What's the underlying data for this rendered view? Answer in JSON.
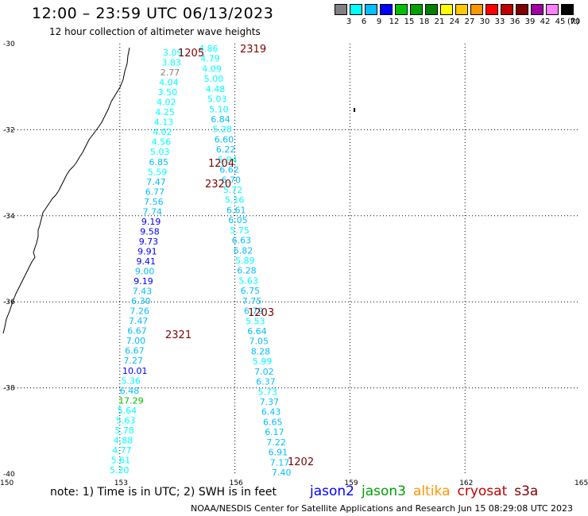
{
  "header": {
    "title": "12:00 – 23:59 UTC 06/13/2023",
    "subtitle": "12 hour collection of altimeter wave heights"
  },
  "colorbar": {
    "labels": [
      "3",
      "6",
      "9",
      "12",
      "15",
      "18",
      "21",
      "24",
      "27",
      "30",
      "33",
      "36",
      "39",
      "42",
      "45",
      "70"
    ],
    "unit": "(ft)",
    "colors": [
      "#808080",
      "#00ffff",
      "#00bfff",
      "#0000ff",
      "#00c000",
      "#00a000",
      "#008000",
      "#ffff00",
      "#ffc800",
      "#ff9600",
      "#ff0000",
      "#c00000",
      "#800000",
      "#a000a0",
      "#ff80ff",
      "#000000"
    ]
  },
  "note": "note: 1) Time is in UTC; 2) SWH is in feet",
  "credit": "NOAA/NESDIS Center for Satellite Applications and Research    Jun 15 08:29:08 UTC 2023",
  "missions": [
    {
      "name": "jason2",
      "color": "#0000ff"
    },
    {
      "name": "jason3",
      "color": "#00a000"
    },
    {
      "name": "altika",
      "color": "#ff9600"
    },
    {
      "name": "cryosat",
      "color": "#c00000"
    },
    {
      "name": "s3a",
      "color": "#800000"
    }
  ],
  "map": {
    "lon_range": [
      150,
      165
    ],
    "lat_range": [
      -40,
      -30
    ],
    "lon_labels": [
      "150",
      "153",
      "156",
      "159",
      "162",
      "165"
    ],
    "lat_labels": [
      "-30",
      "-32",
      "-34",
      "-36",
      "-38",
      "-40"
    ]
  },
  "pass_labels": [
    "1205",
    "2319",
    "1204",
    "2320",
    "1203",
    "2321",
    "1202"
  ],
  "tracks": [
    {
      "label_index": 0,
      "values": [
        {
          "v": "3.09",
          "c": "#00ffff"
        },
        {
          "v": "3.83",
          "c": "#00ffff"
        },
        {
          "v": "2.77",
          "c": "#808080"
        },
        {
          "v": "4.04",
          "c": "#00ffff"
        },
        {
          "v": "3.50",
          "c": "#00ffff"
        },
        {
          "v": "4.02",
          "c": "#00ffff"
        },
        {
          "v": "4.25",
          "c": "#00ffff"
        },
        {
          "v": "4.13",
          "c": "#00ffff"
        },
        {
          "v": "4.02",
          "c": "#00ffff"
        },
        {
          "v": "4.56",
          "c": "#00ffff"
        },
        {
          "v": "5.03",
          "c": "#00ffff"
        },
        {
          "v": "6.85",
          "c": "#00bfff"
        },
        {
          "v": "5.59",
          "c": "#00ffff"
        },
        {
          "v": "7.47",
          "c": "#00bfff"
        },
        {
          "v": "6.77",
          "c": "#00bfff"
        },
        {
          "v": "7.56",
          "c": "#00bfff"
        },
        {
          "v": "7.74",
          "c": "#00bfff"
        },
        {
          "v": "9.19",
          "c": "#0000ff"
        },
        {
          "v": "9.58",
          "c": "#0000ff"
        },
        {
          "v": "9.73",
          "c": "#0000ff"
        },
        {
          "v": "9.91",
          "c": "#0000ff"
        },
        {
          "v": "9.41",
          "c": "#0000ff"
        },
        {
          "v": "9.00",
          "c": "#00bfff"
        },
        {
          "v": "9.19",
          "c": "#0000ff"
        },
        {
          "v": "7.43",
          "c": "#00bfff"
        },
        {
          "v": "6.30",
          "c": "#00bfff"
        },
        {
          "v": "7.26",
          "c": "#00bfff"
        },
        {
          "v": "7.47",
          "c": "#00bfff"
        },
        {
          "v": "6.67",
          "c": "#00bfff"
        },
        {
          "v": "7.00",
          "c": "#00bfff"
        },
        {
          "v": "6.67",
          "c": "#00bfff"
        },
        {
          "v": "7.27",
          "c": "#00bfff"
        },
        {
          "v": "10.01",
          "c": "#0000ff"
        },
        {
          "v": "5.36",
          "c": "#00ffff"
        },
        {
          "v": "6.48",
          "c": "#00bfff"
        },
        {
          "v": "17.29",
          "c": "#00c000"
        },
        {
          "v": "5.64",
          "c": "#00ffff"
        },
        {
          "v": "5.63",
          "c": "#00ffff"
        },
        {
          "v": "5.78",
          "c": "#00ffff"
        },
        {
          "v": "4.88",
          "c": "#00ffff"
        },
        {
          "v": "4.77",
          "c": "#00ffff"
        },
        {
          "v": "5.61",
          "c": "#00ffff"
        },
        {
          "v": "5.20",
          "c": "#00ffff"
        }
      ]
    },
    {
      "label_index": 1,
      "values": [
        {
          "v": "4.86",
          "c": "#00ffff"
        },
        {
          "v": "4.79",
          "c": "#00ffff"
        },
        {
          "v": "4.09",
          "c": "#00ffff"
        },
        {
          "v": "5.00",
          "c": "#00ffff"
        },
        {
          "v": "4.48",
          "c": "#00ffff"
        },
        {
          "v": "5.03",
          "c": "#00ffff"
        },
        {
          "v": "5.10",
          "c": "#00ffff"
        },
        {
          "v": "6.84",
          "c": "#00bfff"
        },
        {
          "v": "5.28",
          "c": "#00ffff"
        },
        {
          "v": "6.60",
          "c": "#00bfff"
        },
        {
          "v": "6.22",
          "c": "#00bfff"
        },
        {
          "v": "5.94",
          "c": "#00ffff"
        },
        {
          "v": "6.62",
          "c": "#00bfff"
        },
        {
          "v": "6.70",
          "c": "#00bfff"
        },
        {
          "v": "5.72",
          "c": "#00ffff"
        },
        {
          "v": "5.16",
          "c": "#00ffff"
        },
        {
          "v": "6.61",
          "c": "#00bfff"
        },
        {
          "v": "6.05",
          "c": "#00bfff"
        },
        {
          "v": "5.75",
          "c": "#00ffff"
        },
        {
          "v": "6.63",
          "c": "#00bfff"
        },
        {
          "v": "6.82",
          "c": "#00bfff"
        },
        {
          "v": "5.89",
          "c": "#00ffff"
        },
        {
          "v": "6.28",
          "c": "#00bfff"
        },
        {
          "v": "5.63",
          "c": "#00ffff"
        },
        {
          "v": "6.75",
          "c": "#00bfff"
        },
        {
          "v": "7.75",
          "c": "#00bfff"
        },
        {
          "v": "6.79",
          "c": "#00bfff"
        },
        {
          "v": "5.53",
          "c": "#00ffff"
        },
        {
          "v": "6.64",
          "c": "#00bfff"
        },
        {
          "v": "7.05",
          "c": "#00bfff"
        },
        {
          "v": "8.28",
          "c": "#00bfff"
        },
        {
          "v": "5.99",
          "c": "#00ffff"
        },
        {
          "v": "7.02",
          "c": "#00bfff"
        },
        {
          "v": "6.37",
          "c": "#00bfff"
        },
        {
          "v": "5.73",
          "c": "#00ffff"
        },
        {
          "v": "7.37",
          "c": "#00bfff"
        },
        {
          "v": "6.43",
          "c": "#00bfff"
        },
        {
          "v": "6.65",
          "c": "#00bfff"
        },
        {
          "v": "6.17",
          "c": "#00bfff"
        },
        {
          "v": "7.22",
          "c": "#00bfff"
        },
        {
          "v": "6.91",
          "c": "#00bfff"
        },
        {
          "v": "7.17",
          "c": "#00bfff"
        },
        {
          "v": "7.40",
          "c": "#00bfff"
        }
      ]
    }
  ]
}
